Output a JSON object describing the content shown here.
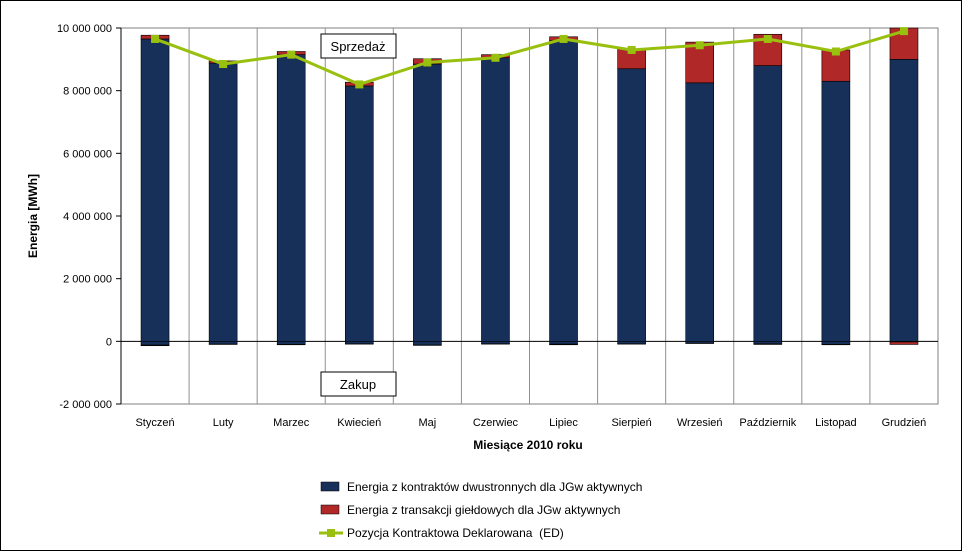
{
  "chart_data": {
    "type": "bar",
    "stacked": true,
    "categories": [
      "Styczeń",
      "Luty",
      "Marzec",
      "Kwiecień",
      "Maj",
      "Czerwiec",
      "Lipiec",
      "Sierpień",
      "Wrzesień",
      "Październik",
      "Listopad",
      "Grudzień"
    ],
    "series": [
      {
        "name": "Energia z kontraktów dwustronnych dla JGw aktywnych",
        "type": "bar",
        "color": "#17305a",
        "values_positive": [
          9650000,
          8880000,
          9150000,
          8150000,
          8850000,
          9050000,
          9600000,
          8700000,
          8250000,
          8800000,
          8300000,
          9000000
        ],
        "values_negative": [
          -120000,
          -90000,
          -100000,
          -80000,
          -120000,
          -80000,
          -90000,
          -80000,
          -60000,
          -80000,
          -100000,
          -20000
        ]
      },
      {
        "name": "Energia z transakcji giełdowych dla JGw aktywnych",
        "type": "bar",
        "color": "#b02828",
        "values_positive": [
          120000,
          70000,
          100000,
          120000,
          170000,
          100000,
          120000,
          620000,
          1300000,
          1000000,
          1000000,
          1000000
        ],
        "values_negative": [
          -20000,
          -10000,
          -10000,
          -10000,
          -10000,
          -10000,
          -20000,
          -10000,
          -10000,
          -20000,
          -10000,
          -80000
        ]
      },
      {
        "name": "Pozycja Kontraktowa Deklarowana  (ED)",
        "type": "line",
        "color": "#99c00e",
        "values": [
          9650000,
          8850000,
          9150000,
          8200000,
          8900000,
          9050000,
          9650000,
          9300000,
          9450000,
          9650000,
          9250000,
          9900000
        ]
      }
    ],
    "xlabel": "Miesiące 2010  roku",
    "ylabel": "Energia [MWh]",
    "ylim": [
      -2000000,
      10000000
    ],
    "yticks": [
      -2000000,
      0,
      2000000,
      4000000,
      6000000,
      8000000,
      10000000
    ],
    "ytick_labels": [
      "-2 000 000",
      "0",
      "2 000 000",
      "4 000 000",
      "6 000 000",
      "8 000 000",
      "10 000 000"
    ],
    "grid": "vertical",
    "legend_position": "bottom",
    "annotations": [
      "Sprzedaż",
      "Zakup"
    ]
  }
}
